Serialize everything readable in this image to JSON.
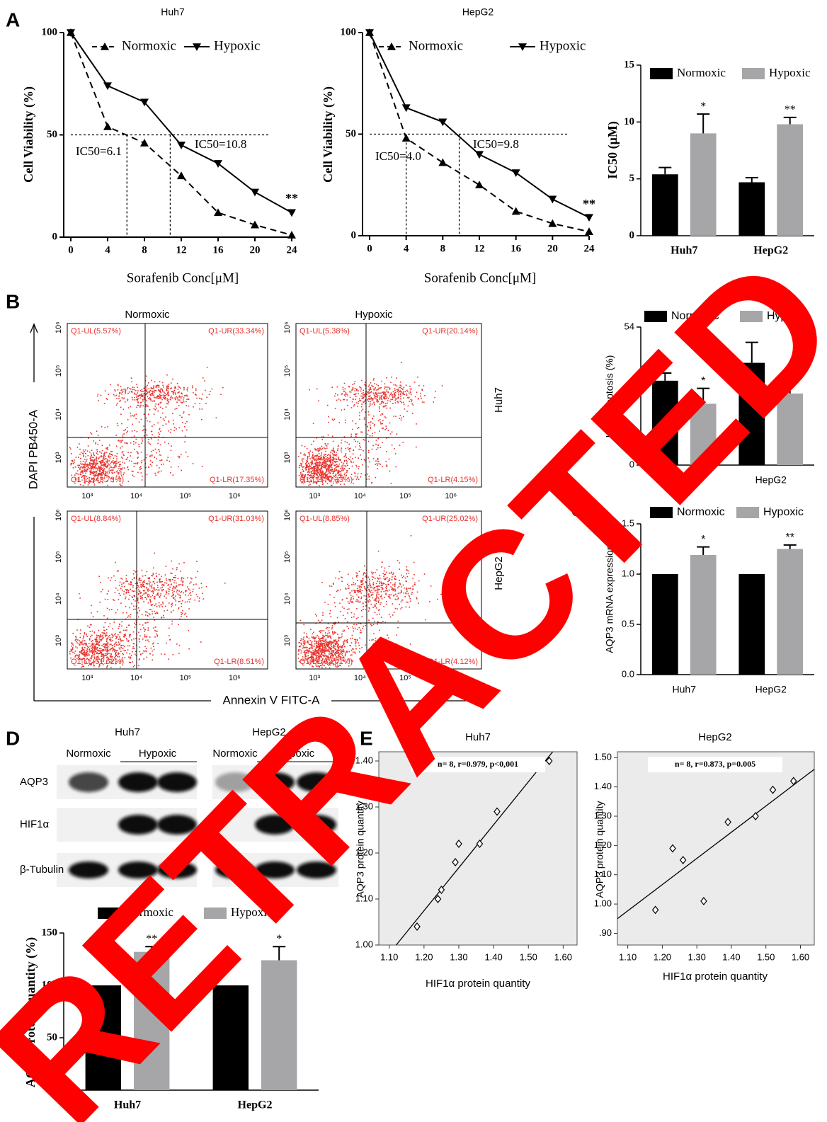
{
  "panel_labels": [
    "A",
    "B",
    "C",
    "D",
    "E"
  ],
  "watermark": "RETRACTED",
  "chart_data": [
    {
      "type": "line",
      "title": "Huh7",
      "x_label": "Sorafenib Conc[μM]",
      "y_label": "Cell Viability (%)",
      "x": [
        0,
        4,
        8,
        12,
        16,
        20,
        24
      ],
      "xlim": [
        0,
        24
      ],
      "xticks": [
        0,
        4,
        8,
        12,
        16,
        20,
        24
      ],
      "ylim": [
        0,
        100
      ],
      "yticks": [
        0,
        50,
        100
      ],
      "series": [
        {
          "name": "Normoxic",
          "color": "#000000",
          "line_style": "dashed",
          "marker": "triangle-up",
          "values": [
            100,
            54,
            46,
            30,
            12,
            6,
            1
          ]
        },
        {
          "name": "Hypoxic",
          "color": "#000000",
          "line_style": "solid",
          "marker": "triangle-down",
          "values": [
            100,
            74,
            66,
            45,
            36,
            22,
            12
          ]
        }
      ],
      "reference_y": 50,
      "reference_x": [
        6.1,
        10.8
      ],
      "annotations": [
        "IC50=6.1",
        "IC50=10.8"
      ],
      "significance": "**"
    },
    {
      "type": "line",
      "title": "HepG2",
      "x_label": "Sorafenib Conc[μM]",
      "y_label": "Cell Viability (%)",
      "x": [
        0,
        4,
        8,
        12,
        16,
        20,
        24
      ],
      "xlim": [
        0,
        24
      ],
      "xticks": [
        0,
        4,
        8,
        12,
        16,
        20,
        24
      ],
      "ylim": [
        0,
        100
      ],
      "yticks": [
        0,
        50,
        100
      ],
      "series": [
        {
          "name": "Normoxic",
          "color": "#000000",
          "line_style": "dashed",
          "marker": "triangle-up",
          "values": [
            100,
            48,
            36,
            25,
            12,
            6,
            2
          ]
        },
        {
          "name": "Hypoxic",
          "color": "#000000",
          "line_style": "solid",
          "marker": "triangle-down",
          "values": [
            100,
            63,
            56,
            40,
            31,
            18,
            9
          ]
        }
      ],
      "reference_y": 50,
      "reference_x": [
        4.0,
        9.8
      ],
      "annotations": [
        "IC50=4.0",
        "IC50=9.8"
      ],
      "significance": "**"
    },
    {
      "type": "bar",
      "y_label": "IC50 (μM)",
      "categories": [
        "Huh7",
        "HepG2"
      ],
      "ylim": [
        0,
        15
      ],
      "yticks": [
        0,
        5,
        10,
        15
      ],
      "series": [
        {
          "name": "Normoxic",
          "color": "#000000",
          "values": [
            5.4,
            4.7
          ],
          "errors": [
            0.6,
            0.4
          ]
        },
        {
          "name": "Hypoxic",
          "color": "#a6a6a8",
          "values": [
            9.0,
            9.8
          ],
          "errors": [
            1.7,
            0.6
          ],
          "significance": [
            "*",
            "**"
          ]
        }
      ]
    },
    {
      "type": "bar",
      "y_label": "Late apoptosis (%)",
      "categories": [
        "Huh7",
        "HepG2"
      ],
      "ylim": [
        0,
        54
      ],
      "yticks": [
        0,
        54
      ],
      "series": [
        {
          "name": "Normoxic",
          "color": "#000000",
          "values": [
            33,
            40
          ],
          "errors": [
            3,
            8
          ]
        },
        {
          "name": "Hypoxic",
          "color": "#a6a6a8",
          "values": [
            24,
            28
          ],
          "errors": [
            6,
            4
          ],
          "significance": [
            "*",
            "*"
          ]
        }
      ]
    },
    {
      "type": "bar",
      "y_label": "AQP3 mRNA expression",
      "categories": [
        "Huh7",
        "HepG2"
      ],
      "ylim": [
        0,
        1.5
      ],
      "yticks": [
        {
          "value": 0,
          "label": "0.0"
        },
        {
          "value": 0.5,
          "label": "0.5"
        },
        {
          "value": 1,
          "label": "1.0"
        },
        {
          "value": 1.5,
          "label": "1.5"
        }
      ],
      "series": [
        {
          "name": "Normoxic",
          "color": "#000000",
          "values": [
            1,
            1
          ]
        },
        {
          "name": "Hypoxic",
          "color": "#a6a6a8",
          "values": [
            1.19,
            1.25
          ],
          "errors": [
            0.08,
            0.04
          ],
          "significance": [
            "*",
            "**"
          ]
        }
      ]
    },
    {
      "type": "bar",
      "y_label": "AQP3 Protein quantity (%)",
      "categories": [
        "Huh7",
        "HepG2"
      ],
      "ylim": [
        0,
        150
      ],
      "yticks": [
        0,
        50,
        100,
        150
      ],
      "series": [
        {
          "name": "Normoxic",
          "color": "#000000",
          "values": [
            100,
            100
          ]
        },
        {
          "name": "Hypoxic",
          "color": "#a6a6a8",
          "values": [
            132,
            124
          ],
          "errors": [
            5,
            13
          ],
          "significance": [
            "**",
            "*"
          ]
        }
      ]
    },
    {
      "type": "scatter",
      "title": "Huh7",
      "x_label": "HIF1α protein quantity",
      "y_label": "AQP3 protein quantity",
      "x": [
        1.18,
        1.24,
        1.25,
        1.29,
        1.3,
        1.36,
        1.41,
        1.56
      ],
      "values": [
        1.04,
        1.1,
        1.12,
        1.18,
        1.22,
        1.22,
        1.29,
        1.4
      ],
      "xlim": [
        1.07,
        1.64
      ],
      "ylim": [
        1.0,
        1.42
      ],
      "xticks": [
        {
          "value": 1.1,
          "label": "1.10"
        },
        {
          "value": 1.2,
          "label": "1.20"
        },
        {
          "value": 1.3,
          "label": "1.30"
        },
        {
          "value": 1.4,
          "label": "1.40"
        },
        {
          "value": 1.5,
          "label": "1.50"
        },
        {
          "value": 1.6,
          "label": "1.60"
        }
      ],
      "yticks": [
        {
          "value": 1.0,
          "label": "1.00"
        },
        {
          "value": 1.1,
          "label": "1.10"
        },
        {
          "value": 1.2,
          "label": "1.20"
        },
        {
          "value": 1.3,
          "label": "1.30"
        },
        {
          "value": 1.4,
          "label": "1.40"
        }
      ],
      "fit_line": {
        "x": [
          1.12,
          1.57
        ],
        "y": [
          1.0,
          1.42
        ]
      },
      "annotation": "n= 8, r=0.979, p<0,001",
      "plot_background": "#ebebeb"
    },
    {
      "type": "scatter",
      "title": "HepG2",
      "x_label": "HIF1α protein quantity",
      "y_label": "AQP3 protein quantity",
      "x": [
        1.18,
        1.23,
        1.26,
        1.32,
        1.39,
        1.47,
        1.52,
        1.58
      ],
      "values": [
        0.98,
        1.19,
        1.15,
        1.01,
        1.28,
        1.3,
        1.39,
        1.42
      ],
      "xlim": [
        1.07,
        1.64
      ],
      "ylim": [
        0.86,
        1.52
      ],
      "xticks": [
        {
          "value": 1.1,
          "label": "1.10"
        },
        {
          "value": 1.2,
          "label": "1.20"
        },
        {
          "value": 1.3,
          "label": "1.30"
        },
        {
          "value": 1.4,
          "label": "1.40"
        },
        {
          "value": 1.5,
          "label": "1.50"
        },
        {
          "value": 1.6,
          "label": "1.60"
        }
      ],
      "yticks": [
        {
          "value": 0.9,
          "label": ".90"
        },
        {
          "value": 1.0,
          "label": "1.00"
        },
        {
          "value": 1.1,
          "label": "1.10"
        },
        {
          "value": 1.2,
          "label": "1.20"
        },
        {
          "value": 1.3,
          "label": "1.30"
        },
        {
          "value": 1.4,
          "label": "1.40"
        },
        {
          "value": 1.5,
          "label": "1.50"
        }
      ],
      "fit_line": {
        "x": [
          1.07,
          1.64
        ],
        "y": [
          0.95,
          1.46
        ]
      },
      "annotation": "n= 8, r=0.873, p=0.005",
      "plot_background": "#ebebeb"
    }
  ],
  "flow": {
    "columns": [
      "Normoxic",
      "Hypoxic"
    ],
    "rows": [
      "Huh7",
      "HepG2"
    ],
    "x_label": "Annexin V FITC-A",
    "y_label": "DAPI PB450-A",
    "tick_labels": [
      "10³",
      "10⁴",
      "10⁵",
      "10⁶"
    ],
    "plots": [
      {
        "UL": "Q1-UL(5.57%)",
        "UR": "Q1-UR(33.34%)",
        "LL": "Q1-LL(43.73%)",
        "LR": "Q1-LR(17.35%)"
      },
      {
        "UL": "Q1-UL(5.38%)",
        "UR": "Q1-UR(20.14%)",
        "LL": "Q1-LL(70.33%)",
        "LR": "Q1-LR(4.15%)"
      },
      {
        "UL": "Q1-UL(8.84%)",
        "UR": "Q1-UR(31.03%)",
        "LL": "Q1-LL(51.62%)",
        "LR": "Q1-LR(8.51%)"
      },
      {
        "UL": "Q1-UL(8.85%)",
        "UR": "Q1-UR(25.02%)",
        "LL": "Q1-LL(62.01%)",
        "LR": "Q1-LR(4.12%)"
      }
    ]
  },
  "blots": {
    "cells": [
      "Huh7",
      "HepG2"
    ],
    "lanes": [
      "Normoxic",
      "Hypoxic"
    ],
    "proteins": [
      "AQP3",
      "HIF1α",
      "β-Tubulin"
    ]
  }
}
